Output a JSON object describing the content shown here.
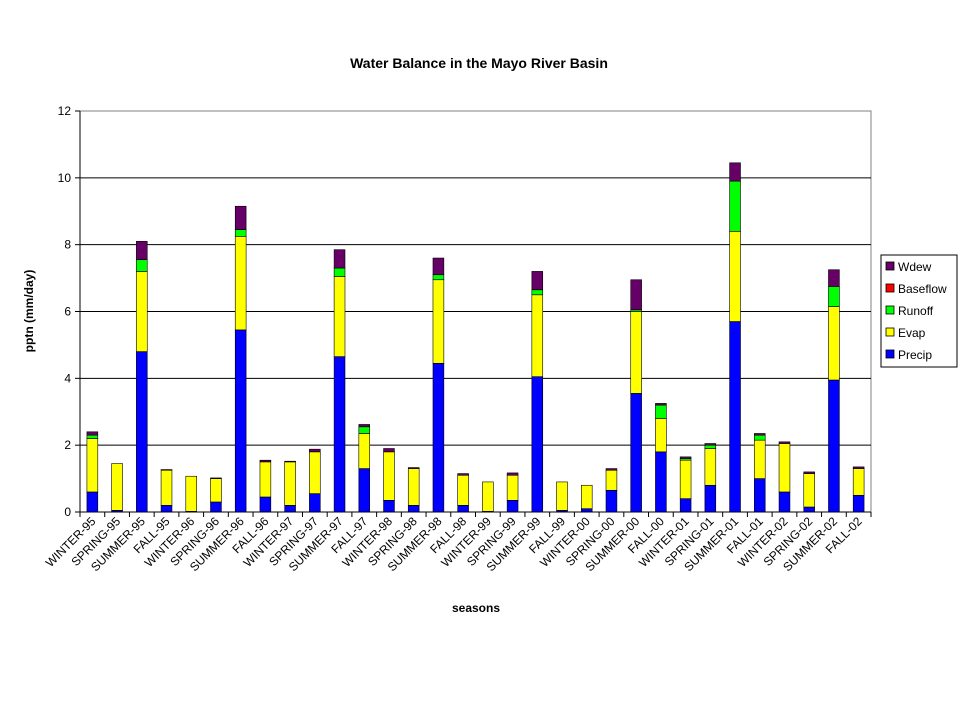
{
  "chart_data": {
    "type": "bar",
    "stacked": true,
    "title": "Water Balance in the Mayo River Basin",
    "xlabel": "seasons",
    "ylabel": "pptn (mm/day)",
    "ylim": [
      0,
      12
    ],
    "yticks": [
      0,
      2,
      4,
      6,
      8,
      10,
      12
    ],
    "grid": true,
    "legend_position": "right",
    "categories": [
      "WINTER-95",
      "SPRING-95",
      "SUMMER-95",
      "FALL-95",
      "WINTER-96",
      "SPRING-96",
      "SUMMER-96",
      "FALL-96",
      "WINTER-97",
      "SPRING-97",
      "SUMMER-97",
      "FALL-97",
      "WINTER-98",
      "SPRING-98",
      "SUMMER-98",
      "FALL-98",
      "WINTER-99",
      "SPRING-99",
      "SUMMER-99",
      "FALL-99",
      "WINTER-00",
      "SPRING-00",
      "SUMMER-00",
      "FALL-00",
      "WINTER-01",
      "SPRING-01",
      "SUMMER-01",
      "FALL-01",
      "WINTER-02",
      "SPRING-02",
      "SUMMER-02",
      "FALL-02"
    ],
    "series": [
      {
        "name": "Precip",
        "color": "#0000ff",
        "values": [
          0.6,
          0.05,
          4.8,
          0.2,
          0.02,
          0.3,
          5.45,
          0.45,
          0.2,
          0.55,
          4.65,
          1.3,
          0.35,
          0.2,
          4.45,
          0.2,
          0.02,
          0.35,
          4.05,
          0.05,
          0.1,
          0.65,
          3.55,
          1.8,
          0.4,
          0.8,
          5.7,
          1.0,
          0.6,
          0.15,
          3.95,
          0.5
        ]
      },
      {
        "name": "Evap",
        "color": "#ffff00",
        "values": [
          1.6,
          1.4,
          2.4,
          1.05,
          1.05,
          0.7,
          2.8,
          1.05,
          1.3,
          1.25,
          2.4,
          1.05,
          1.45,
          1.1,
          2.5,
          0.9,
          0.88,
          0.75,
          2.45,
          0.85,
          0.7,
          0.6,
          2.45,
          1.0,
          1.15,
          1.1,
          2.7,
          1.15,
          1.45,
          1.0,
          2.2,
          0.8
        ]
      },
      {
        "name": "Runoff",
        "color": "#00ff00",
        "values": [
          0.1,
          0.0,
          0.35,
          0.0,
          0.0,
          0.0,
          0.2,
          0.0,
          0.0,
          0.0,
          0.25,
          0.2,
          0.0,
          0.0,
          0.15,
          0.0,
          0.0,
          0.0,
          0.15,
          0.0,
          0.0,
          0.0,
          0.05,
          0.4,
          0.05,
          0.1,
          1.5,
          0.15,
          0.0,
          0.0,
          0.6,
          0.0
        ]
      },
      {
        "name": "Baseflow",
        "color": "#ff0000",
        "values": [
          0.0,
          0.0,
          0.0,
          0.0,
          0.0,
          0.0,
          0.0,
          0.0,
          0.0,
          0.0,
          0.0,
          0.0,
          0.0,
          0.0,
          0.0,
          0.0,
          0.0,
          0.0,
          0.0,
          0.0,
          0.0,
          0.0,
          0.0,
          0.0,
          0.0,
          0.0,
          0.0,
          0.0,
          0.0,
          0.0,
          0.0,
          0.0
        ]
      },
      {
        "name": "Wdew",
        "color": "#660066",
        "values": [
          0.1,
          0.0,
          0.55,
          0.02,
          0.0,
          0.02,
          0.7,
          0.05,
          0.02,
          0.08,
          0.55,
          0.07,
          0.1,
          0.03,
          0.5,
          0.05,
          0.0,
          0.07,
          0.55,
          0.0,
          0.0,
          0.05,
          0.9,
          0.05,
          0.05,
          0.05,
          0.55,
          0.05,
          0.05,
          0.05,
          0.5,
          0.05
        ]
      }
    ],
    "legend_order": [
      "Wdew",
      "Baseflow",
      "Runoff",
      "Evap",
      "Precip"
    ]
  }
}
